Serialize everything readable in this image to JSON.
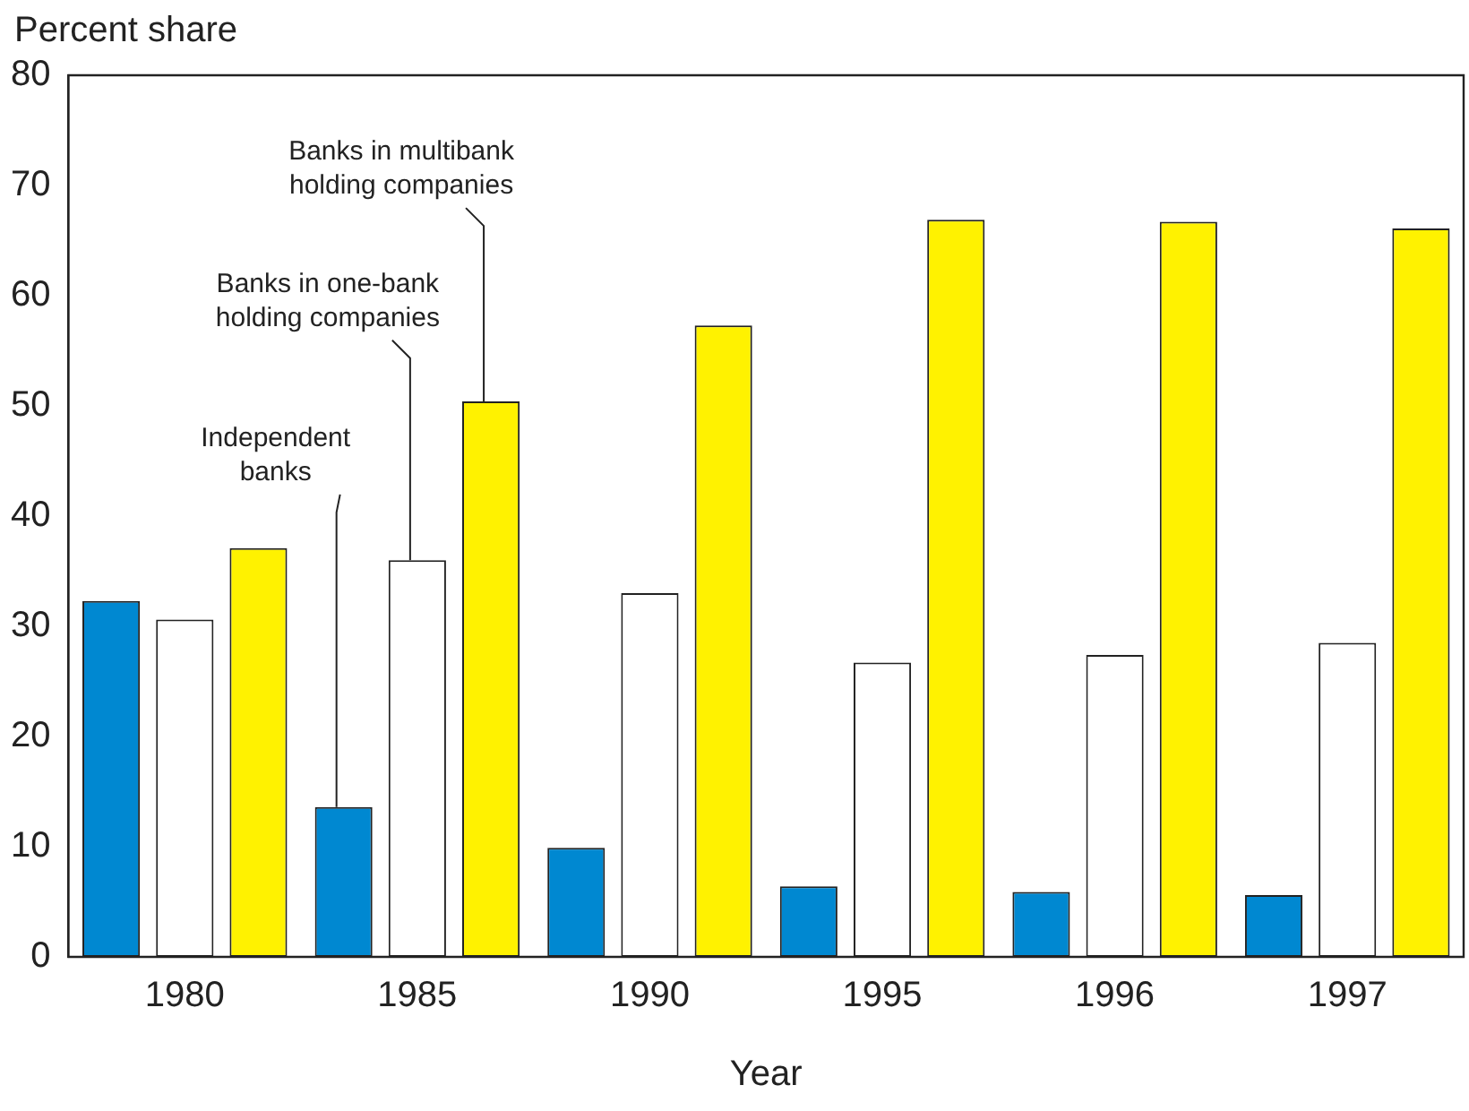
{
  "chart_data": {
    "type": "bar",
    "ylabel": "Percent share",
    "xlabel": "Year",
    "categories": [
      "1980",
      "1985",
      "1990",
      "1995",
      "1996",
      "1997"
    ],
    "series": [
      {
        "name": "Independent banks",
        "color": "#0088d1",
        "values": [
          32.3,
          13.6,
          9.9,
          6.4,
          5.9,
          5.6
        ]
      },
      {
        "name": "Banks in one-bank holding companies",
        "color": "#ffffff",
        "values": [
          30.6,
          36.0,
          33.0,
          26.7,
          27.4,
          28.5
        ]
      },
      {
        "name": "Banks in multibank holding companies",
        "color": "#fff200",
        "values": [
          37.1,
          50.4,
          57.3,
          66.9,
          66.7,
          66.1
        ]
      }
    ],
    "ylim": [
      0,
      80
    ],
    "yticks": [
      0,
      10,
      20,
      30,
      40,
      50,
      60,
      70,
      80
    ],
    "grid": false,
    "legend": false
  }
}
